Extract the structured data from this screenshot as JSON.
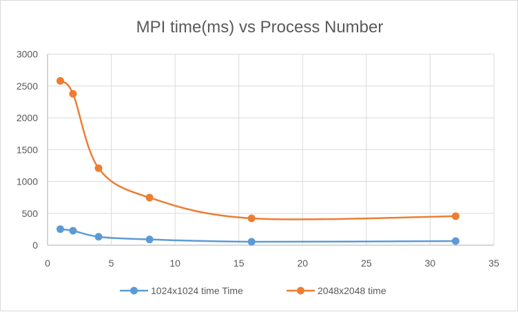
{
  "chart_data": {
    "type": "line",
    "title": "MPI time(ms) vs Process Number",
    "xlabel": "",
    "ylabel": "",
    "xlim": [
      0,
      35
    ],
    "ylim": [
      0,
      3000
    ],
    "xticks": [
      0,
      5,
      10,
      15,
      20,
      25,
      30,
      35
    ],
    "yticks": [
      0,
      500,
      1000,
      1500,
      2000,
      2500,
      3000
    ],
    "grid": true,
    "smooth": true,
    "legend_position": "bottom",
    "series": [
      {
        "name": "1024x1024 time Time",
        "color": "#5b9bd5",
        "x": [
          1,
          2,
          4,
          8,
          16,
          32
        ],
        "y": [
          252,
          227,
          133,
          90,
          54,
          65
        ]
      },
      {
        "name": "2048x2048 time",
        "color": "#ed7d31",
        "x": [
          1,
          2,
          4,
          8,
          16,
          32
        ],
        "y": [
          2580,
          2377,
          1210,
          747,
          422,
          455
        ]
      }
    ]
  }
}
